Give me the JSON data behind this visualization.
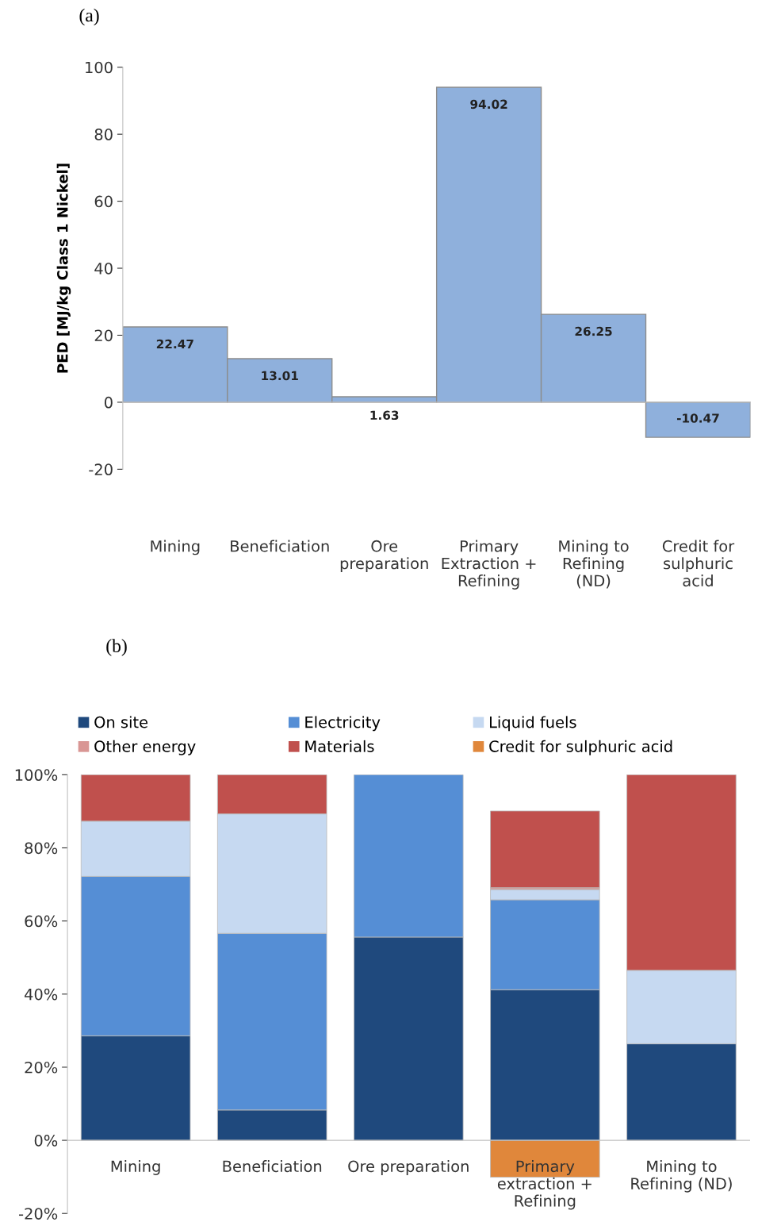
{
  "chart_data": [
    {
      "type": "bar",
      "title": "(a)",
      "ylabel": "PED [MJ/kg Class 1 Nickel]",
      "categories": [
        "Mining",
        "Beneficiation",
        "Ore\npreparation",
        "Primary\nExtraction +\nRefining",
        "Mining to\nRefining\n(ND)",
        "Credit for\nsulphuric\nacid"
      ],
      "values": [
        22.47,
        13.01,
        1.63,
        94.02,
        26.25,
        -10.47
      ],
      "color": "#8fb0dc",
      "ylim": [
        -20,
        100
      ],
      "yticks": [
        -20,
        0,
        20,
        40,
        60,
        80,
        100
      ],
      "data_labels": true
    },
    {
      "type": "bar",
      "title": "(b)",
      "stacked": true,
      "legend": "top",
      "categories": [
        "Mining",
        "Beneficiation",
        "Ore preparation",
        "Primary\nextraction +\nRefining",
        "Mining to\nRefining (ND)"
      ],
      "series": [
        {
          "name": "On site",
          "color": "#1f497d",
          "values": [
            28.6,
            8.3,
            55.6,
            41.2,
            26.4
          ]
        },
        {
          "name": "Electricity",
          "color": "#558ed5",
          "values": [
            43.6,
            48.3,
            44.4,
            24.6,
            null
          ]
        },
        {
          "name": "Liquid fuels",
          "color": "#c6d9f1",
          "values": [
            15.1,
            32.7,
            null,
            2.8,
            20.1
          ]
        },
        {
          "name": "Other energy",
          "color": "#d99694",
          "values": [
            null,
            null,
            null,
            0.5,
            null
          ]
        },
        {
          "name": "Materials",
          "color": "#c0504d",
          "values": [
            12.7,
            10.7,
            null,
            21.0,
            53.5
          ]
        },
        {
          "name": "Credit for sulphuric acid",
          "color": "#e0873b",
          "values": [
            null,
            null,
            null,
            -10.1,
            null
          ]
        }
      ],
      "ylim": [
        -20,
        100
      ],
      "yticks": [
        {
          "value": -20,
          "label": "-20%"
        },
        {
          "value": 0,
          "label": "0%"
        },
        {
          "value": 20,
          "label": "20%"
        },
        {
          "value": 40,
          "label": "40%"
        },
        {
          "value": 60,
          "label": "60%"
        },
        {
          "value": 80,
          "label": "80%"
        },
        {
          "value": 100,
          "label": "100%"
        }
      ]
    }
  ]
}
